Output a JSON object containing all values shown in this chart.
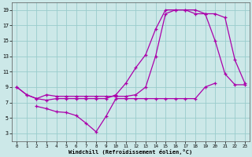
{
  "xlabel": "Windchill (Refroidissement éolien,°C)",
  "bg_color": "#cce8e8",
  "line_color": "#aa00aa",
  "grid_color": "#99cccc",
  "xlim": [
    -0.5,
    23.5
  ],
  "ylim": [
    2,
    20
  ],
  "xticks": [
    0,
    1,
    2,
    3,
    4,
    5,
    6,
    7,
    8,
    9,
    10,
    11,
    12,
    13,
    14,
    15,
    16,
    17,
    18,
    19,
    20,
    21,
    22,
    23
  ],
  "yticks": [
    3,
    5,
    7,
    9,
    11,
    13,
    15,
    17,
    19
  ],
  "lines": [
    {
      "x": [
        0,
        1,
        2,
        3,
        4,
        5,
        6,
        7,
        8,
        9,
        10,
        11,
        12,
        13,
        14,
        15,
        16,
        17,
        18,
        19,
        20,
        21,
        22,
        23
      ],
      "y": [
        9,
        8,
        7.5,
        8,
        7.8,
        7.8,
        7.8,
        7.8,
        7.8,
        7.8,
        7.8,
        7.8,
        8,
        9,
        13,
        18.5,
        19,
        19,
        18.5,
        18.5,
        18.5,
        18,
        12.5,
        9.5
      ]
    },
    {
      "x": [
        0,
        1,
        2,
        3,
        4,
        5,
        6,
        7,
        8,
        9,
        10,
        11,
        12,
        13,
        14,
        15,
        16,
        17,
        18,
        19,
        20,
        21,
        22,
        23
      ],
      "y": [
        9,
        8,
        7.5,
        7.3,
        7.5,
        7.5,
        7.5,
        7.5,
        7.5,
        7.5,
        8,
        9.5,
        11.5,
        13.2,
        16.5,
        19,
        19,
        19,
        19,
        18.5,
        15,
        10.7,
        9.3,
        9.3
      ]
    },
    {
      "x": [
        2,
        3,
        4,
        5,
        6,
        7,
        8,
        9,
        10,
        11,
        12,
        13,
        14,
        15,
        16,
        17,
        18,
        19,
        20
      ],
      "y": [
        6.5,
        6.2,
        5.8,
        5.7,
        5.3,
        4.3,
        3.2,
        5.2,
        7.5,
        7.5,
        7.5,
        7.5,
        7.5,
        7.5,
        7.5,
        7.5,
        7.5,
        9.0,
        9.5
      ]
    }
  ]
}
